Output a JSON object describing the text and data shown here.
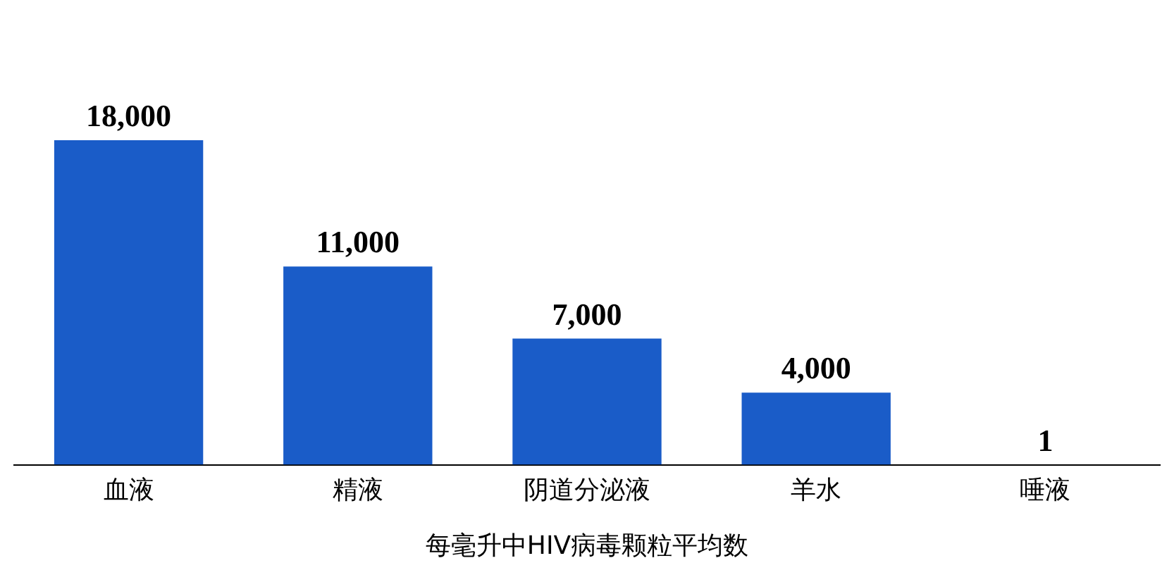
{
  "chart_data": {
    "type": "bar",
    "xlabel": "每毫升中HIV病毒颗粒平均数",
    "categories": [
      "血液",
      "精液",
      "阴道分泌液",
      "羊水",
      "唾液"
    ],
    "values": [
      18000,
      11000,
      7000,
      4000,
      1
    ],
    "value_labels": [
      "18,000",
      "11,000",
      "7,000",
      "4,000",
      "1"
    ],
    "color": "#1a5cc8",
    "tick_labels": "x",
    "grid": false,
    "legend": false
  }
}
